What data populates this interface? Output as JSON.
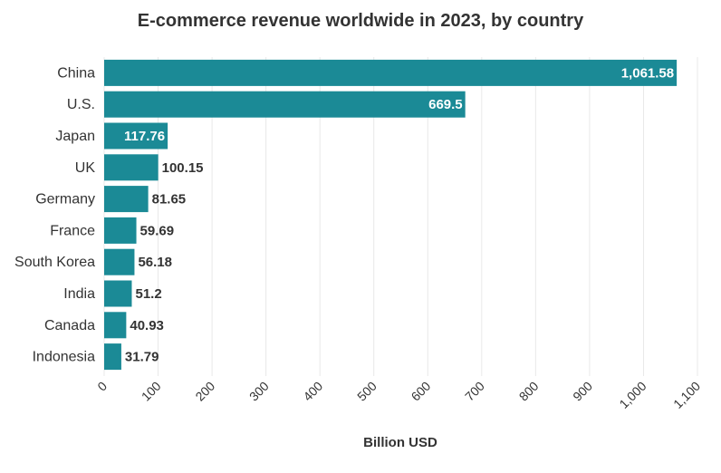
{
  "chart_data": {
    "type": "bar",
    "orientation": "horizontal",
    "title": "E-commerce revenue worldwide in 2023, by country",
    "xlabel": "Billion USD",
    "ylabel": "",
    "categories": [
      "China",
      "U.S.",
      "Japan",
      "UK",
      "Germany",
      "France",
      "South Korea",
      "India",
      "Canada",
      "Indonesia"
    ],
    "values": [
      1061.58,
      669.5,
      117.76,
      100.15,
      81.65,
      59.69,
      56.18,
      51.2,
      40.93,
      31.79
    ],
    "value_labels": [
      "1,061.58",
      "669.5",
      "117.76",
      "100.15",
      "81.65",
      "59.69",
      "56.18",
      "51.2",
      "40.93",
      "31.79"
    ],
    "xlim": [
      0,
      1100
    ],
    "x_ticks": [
      0,
      100,
      200,
      300,
      400,
      500,
      600,
      700,
      800,
      900,
      1000,
      1100
    ],
    "x_tick_labels": [
      "0",
      "100",
      "200",
      "300",
      "400",
      "500",
      "600",
      "700",
      "800",
      "900",
      "1,000",
      "1,100"
    ],
    "grid": true,
    "colors": {
      "bar": "#1b8a96",
      "text": "#333333",
      "grid": "#e8e8e8",
      "label_inside": "#ffffff"
    }
  }
}
